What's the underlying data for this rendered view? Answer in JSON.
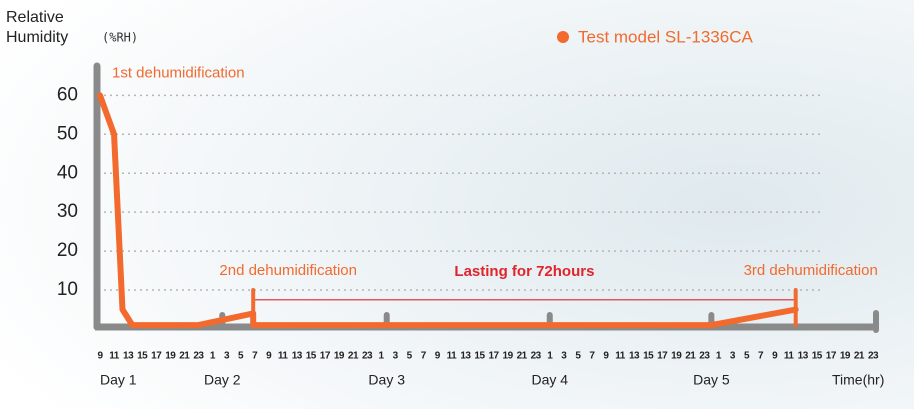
{
  "chart_data": {
    "type": "line",
    "y_label_lines": [
      "Relative",
      "Humidity"
    ],
    "y_unit": "(%RH)",
    "x_label": "Time(hr)",
    "xlim": [
      0,
      55
    ],
    "ylim": [
      0,
      66
    ],
    "yticks": [
      10,
      20,
      30,
      40,
      50,
      60
    ],
    "xticks": [
      {
        "value": 0,
        "label": "9"
      },
      {
        "value": 1,
        "label": "11"
      },
      {
        "value": 2,
        "label": "13"
      },
      {
        "value": 3,
        "label": "15"
      },
      {
        "value": 4,
        "label": "17"
      },
      {
        "value": 5,
        "label": "19"
      },
      {
        "value": 6,
        "label": "21"
      },
      {
        "value": 7,
        "label": "23"
      },
      {
        "value": 8,
        "label": "1"
      },
      {
        "value": 9,
        "label": "3"
      },
      {
        "value": 10,
        "label": "5"
      },
      {
        "value": 11,
        "label": "7"
      },
      {
        "value": 12,
        "label": "9"
      },
      {
        "value": 13,
        "label": "11"
      },
      {
        "value": 14,
        "label": "13"
      },
      {
        "value": 15,
        "label": "15"
      },
      {
        "value": 16,
        "label": "17"
      },
      {
        "value": 17,
        "label": "19"
      },
      {
        "value": 18,
        "label": "21"
      },
      {
        "value": 19,
        "label": "23"
      },
      {
        "value": 20,
        "label": "1"
      },
      {
        "value": 21,
        "label": "3"
      },
      {
        "value": 22,
        "label": "5"
      },
      {
        "value": 23,
        "label": "7"
      },
      {
        "value": 24,
        "label": "9"
      },
      {
        "value": 25,
        "label": "11"
      },
      {
        "value": 26,
        "label": "13"
      },
      {
        "value": 27,
        "label": "15"
      },
      {
        "value": 28,
        "label": "17"
      },
      {
        "value": 29,
        "label": "19"
      },
      {
        "value": 30,
        "label": "21"
      },
      {
        "value": 31,
        "label": "23"
      },
      {
        "value": 32,
        "label": "1"
      },
      {
        "value": 33,
        "label": "3"
      },
      {
        "value": 34,
        "label": "5"
      },
      {
        "value": 35,
        "label": "7"
      },
      {
        "value": 36,
        "label": "9"
      },
      {
        "value": 37,
        "label": "11"
      },
      {
        "value": 38,
        "label": "13"
      },
      {
        "value": 39,
        "label": "15"
      },
      {
        "value": 40,
        "label": "17"
      },
      {
        "value": 41,
        "label": "19"
      },
      {
        "value": 42,
        "label": "21"
      },
      {
        "value": 43,
        "label": "23"
      },
      {
        "value": 44,
        "label": "1"
      },
      {
        "value": 45,
        "label": "3"
      },
      {
        "value": 46,
        "label": "5"
      },
      {
        "value": 47,
        "label": "7"
      },
      {
        "value": 48,
        "label": "9"
      },
      {
        "value": 49,
        "label": "11"
      },
      {
        "value": 50,
        "label": "13"
      },
      {
        "value": 51,
        "label": "15"
      },
      {
        "value": 52,
        "label": "17"
      },
      {
        "value": 53,
        "label": "19"
      },
      {
        "value": 54,
        "label": "21"
      },
      {
        "value": 55,
        "label": "23"
      }
    ],
    "day_ticks": [
      {
        "value": 1.3,
        "label": "Day 1"
      },
      {
        "value": 8.7,
        "label": "Day 2"
      },
      {
        "value": 20.4,
        "label": "Day 3"
      },
      {
        "value": 32,
        "label": "Day 4"
      },
      {
        "value": 43.5,
        "label": "Day 5"
      }
    ],
    "grid": true,
    "series": [
      {
        "name": "Test model SL-1336CA",
        "color": "#f26a2e",
        "x": [
          0,
          1,
          1.6,
          2.3,
          7,
          10.9,
          10.9,
          43.5,
          49.5
        ],
        "values": [
          60,
          50,
          5,
          1,
          1,
          4,
          1,
          1,
          5
        ]
      }
    ],
    "events": [
      {
        "label": "1st dehumidification",
        "x": 0,
        "y": 60
      },
      {
        "label": "2nd dehumidification",
        "x": 10.9,
        "y": 10
      },
      {
        "label": "3rd dehumidification",
        "x": 49.5,
        "y": 10
      }
    ],
    "span": {
      "label": "Lasting for 72hours",
      "from": 10.9,
      "to": 49.5,
      "y": 7.5,
      "color": "#e0242c"
    }
  }
}
